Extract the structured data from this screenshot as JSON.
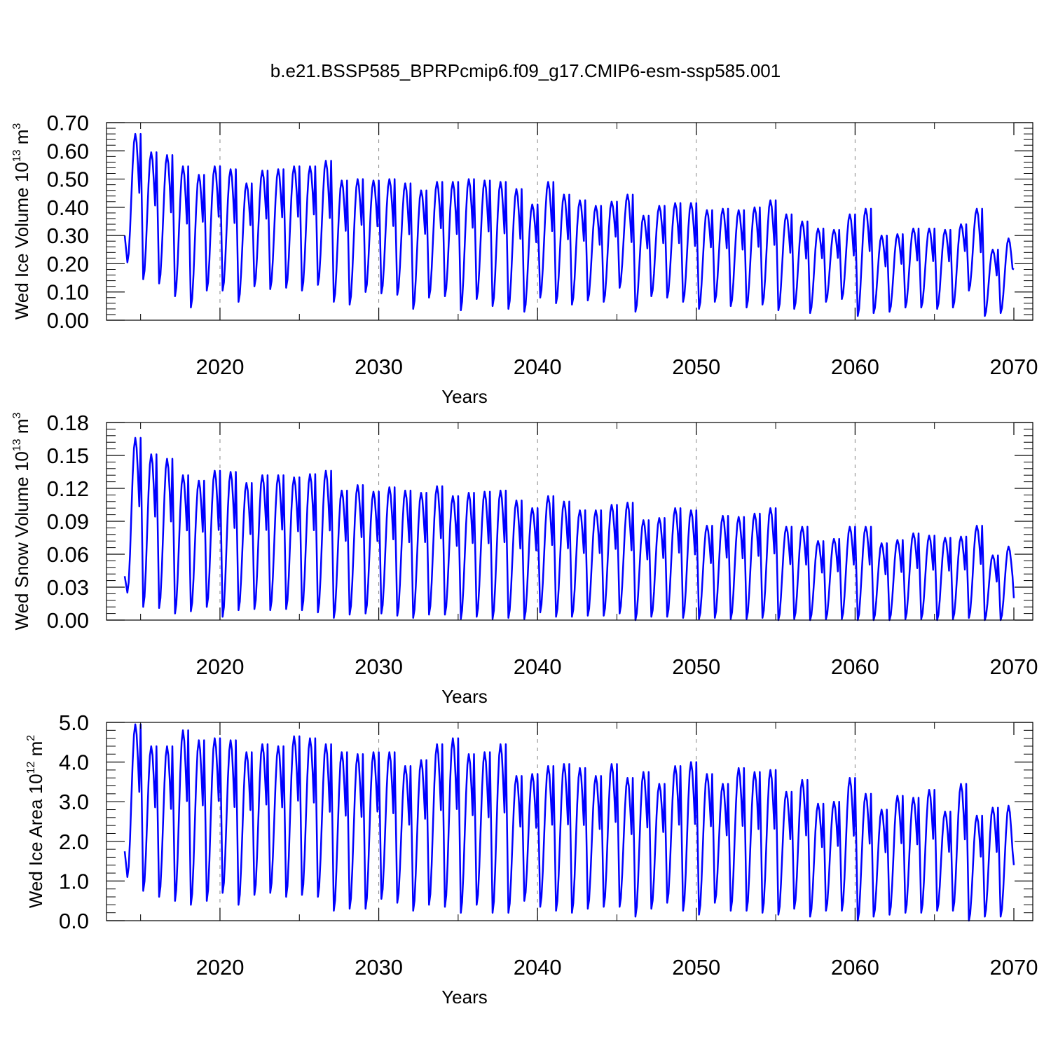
{
  "title": "b.e21.BSSP585_BPRPcmip6.f09_g17.CMIP6-esm-ssp585.001",
  "colors": {
    "line": "#0000ff",
    "axis": "#000000",
    "grid": "#888888"
  },
  "chart_data": [
    {
      "type": "line",
      "name": "ice-volume",
      "title": "b.e21.BSSP585_BPRPcmip6.f09_g17.CMIP6-esm-ssp585.001",
      "xlabel": "Years",
      "ylabel_text": "Wed Ice Volume 10",
      "ylabel_exp": "13",
      "ylabel_unit": " m",
      "ylabel_unit_exp": "3",
      "xlim": [
        2014,
        2070
      ],
      "ylim": [
        0,
        0.7
      ],
      "x_ticks": [
        "2020",
        "2030",
        "2040",
        "2050",
        "2060",
        "2070"
      ],
      "y_ticks": [
        "0.00",
        "0.10",
        "0.20",
        "0.30",
        "0.40",
        "0.50",
        "0.60",
        "0.70"
      ],
      "grid_x": [
        2020,
        2030,
        2040,
        2050,
        2060
      ],
      "series": [
        {
          "name": "Wed Ice Volume",
          "start_year": 2014,
          "end_year": 2070,
          "annual_max": [
            0.66,
            0.595,
            0.585,
            0.545,
            0.515,
            0.545,
            0.535,
            0.485,
            0.53,
            0.535,
            0.545,
            0.545,
            0.565,
            0.495,
            0.5,
            0.495,
            0.5,
            0.485,
            0.46,
            0.49,
            0.49,
            0.5,
            0.495,
            0.49,
            0.465,
            0.41,
            0.49,
            0.445,
            0.425,
            0.405,
            0.42,
            0.445,
            0.37,
            0.405,
            0.415,
            0.415,
            0.39,
            0.395,
            0.39,
            0.4,
            0.425,
            0.375,
            0.35,
            0.325,
            0.32,
            0.375,
            0.395,
            0.3,
            0.305,
            0.325,
            0.325,
            0.32,
            0.34,
            0.395,
            0.25,
            0.29
          ],
          "annual_min": [
            0.205,
            0.145,
            0.13,
            0.085,
            0.045,
            0.105,
            0.105,
            0.065,
            0.12,
            0.11,
            0.115,
            0.105,
            0.125,
            0.065,
            0.055,
            0.1,
            0.095,
            0.09,
            0.04,
            0.08,
            0.085,
            0.035,
            0.075,
            0.05,
            0.04,
            0.03,
            0.08,
            0.06,
            0.055,
            0.07,
            0.065,
            0.115,
            0.03,
            0.085,
            0.08,
            0.065,
            0.04,
            0.065,
            0.05,
            0.045,
            0.055,
            0.035,
            0.04,
            0.025,
            0.065,
            0.075,
            0.015,
            0.025,
            0.03,
            0.045,
            0.045,
            0.04,
            0.045,
            0.105,
            0.015,
            0.025
          ],
          "first_value": 0.3,
          "last_value": 0.18
        }
      ]
    },
    {
      "type": "line",
      "name": "snow-volume",
      "xlabel": "Years",
      "ylabel_text": "Wed Snow Volume 10",
      "ylabel_exp": "13",
      "ylabel_unit": " m",
      "ylabel_unit_exp": "3",
      "xlim": [
        2014,
        2070
      ],
      "ylim": [
        0,
        0.18
      ],
      "x_ticks": [
        "2020",
        "2030",
        "2040",
        "2050",
        "2060",
        "2070"
      ],
      "y_ticks": [
        "0.00",
        "0.03",
        "0.06",
        "0.09",
        "0.12",
        "0.15",
        "0.18"
      ],
      "grid_x": [
        2020,
        2030,
        2040,
        2050,
        2060
      ],
      "series": [
        {
          "name": "Wed Snow Volume",
          "start_year": 2014,
          "end_year": 2070,
          "annual_max": [
            0.166,
            0.151,
            0.147,
            0.132,
            0.127,
            0.136,
            0.135,
            0.125,
            0.132,
            0.132,
            0.13,
            0.133,
            0.136,
            0.118,
            0.123,
            0.117,
            0.121,
            0.118,
            0.116,
            0.122,
            0.113,
            0.116,
            0.117,
            0.118,
            0.109,
            0.102,
            0.113,
            0.108,
            0.1,
            0.1,
            0.105,
            0.107,
            0.091,
            0.093,
            0.102,
            0.1,
            0.086,
            0.095,
            0.094,
            0.097,
            0.102,
            0.085,
            0.085,
            0.072,
            0.074,
            0.085,
            0.085,
            0.07,
            0.073,
            0.079,
            0.077,
            0.075,
            0.076,
            0.086,
            0.059,
            0.067
          ],
          "annual_min": [
            0.025,
            0.012,
            0.011,
            0.006,
            0.008,
            0.012,
            0.003,
            0.009,
            0.01,
            0.009,
            0.01,
            0.009,
            0.007,
            0.002,
            0.005,
            0.006,
            0.006,
            0.004,
            0.002,
            0.005,
            0.005,
            0.001,
            0.003,
            0.001,
            0.002,
            0.001,
            0.007,
            0.003,
            0.003,
            0.004,
            0.004,
            0.006,
            0.0,
            0.003,
            0.003,
            0.002,
            0.001,
            0.002,
            0.001,
            0.001,
            0.002,
            0.0,
            0.001,
            0.0,
            0.001,
            0.001,
            0.0,
            0.0,
            0.0,
            0.001,
            0.001,
            0.0,
            0.001,
            0.002,
            0.0,
            0.0
          ],
          "first_value": 0.04,
          "last_value": 0.02
        }
      ]
    },
    {
      "type": "line",
      "name": "ice-area",
      "xlabel": "Years",
      "ylabel_text": "Wed Ice Area 10",
      "ylabel_exp": "12",
      "ylabel_unit": " m",
      "ylabel_unit_exp": "2",
      "xlim": [
        2014,
        2070
      ],
      "ylim": [
        0,
        5.0
      ],
      "x_ticks": [
        "2020",
        "2030",
        "2040",
        "2050",
        "2060",
        "2070"
      ],
      "y_ticks": [
        "0.0",
        "1.0",
        "2.0",
        "3.0",
        "4.0",
        "5.0"
      ],
      "grid_x": [
        2020,
        2030,
        2040,
        2050,
        2060
      ],
      "series": [
        {
          "name": "Wed Ice Area",
          "start_year": 2014,
          "end_year": 2070,
          "annual_max": [
            4.95,
            4.4,
            4.4,
            4.8,
            4.55,
            4.6,
            4.55,
            4.25,
            4.45,
            4.4,
            4.65,
            4.6,
            4.45,
            4.25,
            4.2,
            4.25,
            4.25,
            3.9,
            4.05,
            4.45,
            4.6,
            4.2,
            4.25,
            4.45,
            3.65,
            3.7,
            3.9,
            3.95,
            3.85,
            3.65,
            3.95,
            3.6,
            3.75,
            3.45,
            3.9,
            4.0,
            3.7,
            3.45,
            3.85,
            3.75,
            3.8,
            3.25,
            3.55,
            2.95,
            3.0,
            3.6,
            3.2,
            2.8,
            3.15,
            3.1,
            3.3,
            2.75,
            3.45,
            2.65,
            2.85,
            2.9
          ],
          "annual_min": [
            1.1,
            0.75,
            0.6,
            0.5,
            0.4,
            0.5,
            0.7,
            0.4,
            0.65,
            0.7,
            0.6,
            0.65,
            0.6,
            0.25,
            0.3,
            0.3,
            0.55,
            0.45,
            0.25,
            0.4,
            0.35,
            0.2,
            0.4,
            0.2,
            0.2,
            0.5,
            0.35,
            0.25,
            0.2,
            0.3,
            0.35,
            0.35,
            0.1,
            0.3,
            0.45,
            0.25,
            0.15,
            0.45,
            0.25,
            0.25,
            0.2,
            0.15,
            0.3,
            0.1,
            0.25,
            0.25,
            0.0,
            0.1,
            0.15,
            0.2,
            0.2,
            0.25,
            0.25,
            0.0,
            0.1,
            0.1
          ],
          "first_value": 1.75,
          "last_value": 1.4
        }
      ]
    }
  ]
}
